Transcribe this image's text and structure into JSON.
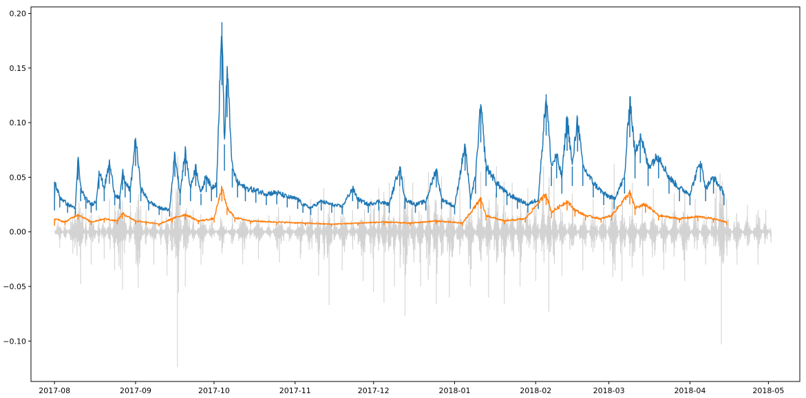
{
  "chart_data": {
    "type": "line",
    "title": "",
    "xlabel": "",
    "ylabel": "",
    "xlim": [
      "2017-07-23",
      "2018-05-13"
    ],
    "ylim": [
      -0.137,
      0.206
    ],
    "grid": false,
    "legend": "none",
    "x_ticks": [
      "2017-08",
      "2017-09",
      "2017-10",
      "2017-11",
      "2017-12",
      "2018-01",
      "2018-02",
      "2018-03",
      "2018-04",
      "2018-05"
    ],
    "y_ticks": [
      -0.1,
      -0.05,
      0.0,
      0.05,
      0.1,
      0.15,
      0.2
    ],
    "y_tick_labels": [
      "−0.10",
      "−0.05",
      "0.00",
      "0.05",
      "0.10",
      "0.15",
      "0.20"
    ],
    "series": [
      {
        "color": "#d3d3d3",
        "style": "returns",
        "points": [
          [
            "2017-08-01",
            0.0
          ],
          [
            "2017-08-03",
            -0.015
          ],
          [
            "2017-08-05",
            0.012
          ],
          [
            "2017-08-08",
            -0.02
          ],
          [
            "2017-08-11",
            -0.048
          ],
          [
            "2017-08-13",
            0.02
          ],
          [
            "2017-08-15",
            -0.03
          ],
          [
            "2017-08-18",
            0.015
          ],
          [
            "2017-08-20",
            -0.025
          ],
          [
            "2017-08-22",
            0.03
          ],
          [
            "2017-08-24",
            -0.035
          ],
          [
            "2017-08-27",
            -0.053
          ],
          [
            "2017-08-30",
            0.025
          ],
          [
            "2017-09-02",
            -0.051
          ],
          [
            "2017-09-05",
            0.02
          ],
          [
            "2017-09-08",
            -0.03
          ],
          [
            "2017-09-11",
            0.022
          ],
          [
            "2017-09-13",
            -0.04
          ],
          [
            "2017-09-15",
            0.04
          ],
          [
            "2017-09-17",
            -0.124
          ],
          [
            "2017-09-18",
            0.03
          ],
          [
            "2017-09-20",
            -0.05
          ],
          [
            "2017-09-23",
            0.02
          ],
          [
            "2017-09-26",
            -0.03
          ],
          [
            "2017-09-30",
            0.015
          ],
          [
            "2017-10-04",
            -0.02
          ],
          [
            "2017-10-08",
            0.015
          ],
          [
            "2017-10-12",
            -0.03
          ],
          [
            "2017-10-15",
            0.01
          ],
          [
            "2017-10-18",
            -0.025
          ],
          [
            "2017-10-22",
            0.015
          ],
          [
            "2017-10-26",
            -0.028
          ],
          [
            "2017-10-30",
            0.015
          ],
          [
            "2017-11-03",
            -0.025
          ],
          [
            "2017-11-07",
            0.03
          ],
          [
            "2017-11-10",
            -0.04
          ],
          [
            "2017-11-12",
            0.04
          ],
          [
            "2017-11-14",
            -0.067
          ],
          [
            "2017-11-16",
            0.025
          ],
          [
            "2017-11-19",
            -0.035
          ],
          [
            "2017-11-23",
            0.02
          ],
          [
            "2017-11-27",
            -0.045
          ],
          [
            "2017-11-30",
            0.03
          ],
          [
            "2017-12-01",
            -0.055
          ],
          [
            "2017-12-03",
            0.04
          ],
          [
            "2017-12-05",
            -0.065
          ],
          [
            "2017-12-07",
            0.045
          ],
          [
            "2017-12-09",
            -0.05
          ],
          [
            "2017-12-11",
            0.05
          ],
          [
            "2017-12-13",
            -0.077
          ],
          [
            "2017-12-16",
            0.045
          ],
          [
            "2017-12-19",
            -0.05
          ],
          [
            "2017-12-22",
            0.055
          ],
          [
            "2017-12-25",
            -0.066
          ],
          [
            "2017-12-27",
            0.05
          ],
          [
            "2017-12-30",
            -0.06
          ],
          [
            "2018-01-03",
            0.04
          ],
          [
            "2018-01-07",
            -0.05
          ],
          [
            "2018-01-11",
            0.055
          ],
          [
            "2018-01-14",
            -0.06
          ],
          [
            "2018-01-17",
            0.06
          ],
          [
            "2018-01-20",
            -0.066
          ],
          [
            "2018-01-23",
            0.045
          ],
          [
            "2018-01-26",
            -0.05
          ],
          [
            "2018-01-29",
            0.04
          ],
          [
            "2018-02-01",
            -0.045
          ],
          [
            "2018-02-04",
            0.06
          ],
          [
            "2018-02-06",
            -0.073
          ],
          [
            "2018-02-08",
            0.05
          ],
          [
            "2018-02-11",
            -0.04
          ],
          [
            "2018-02-15",
            0.035
          ],
          [
            "2018-02-19",
            -0.035
          ],
          [
            "2018-02-23",
            0.03
          ],
          [
            "2018-02-27",
            -0.03
          ],
          [
            "2018-03-03",
            0.062
          ],
          [
            "2018-03-06",
            -0.045
          ],
          [
            "2018-03-10",
            0.045
          ],
          [
            "2018-03-14",
            -0.04
          ],
          [
            "2018-03-18",
            0.04
          ],
          [
            "2018-03-22",
            -0.035
          ],
          [
            "2018-03-26",
            0.035
          ],
          [
            "2018-03-30",
            -0.045
          ],
          [
            "2018-04-03",
            0.03
          ],
          [
            "2018-04-07",
            -0.03
          ],
          [
            "2018-04-11",
            0.04
          ],
          [
            "2018-04-13",
            -0.103
          ],
          [
            "2018-04-15",
            0.03
          ],
          [
            "2018-04-19",
            -0.03
          ],
          [
            "2018-04-23",
            0.025
          ],
          [
            "2018-04-27",
            -0.03
          ],
          [
            "2018-04-30",
            0.02
          ],
          [
            "2018-05-02",
            -0.01
          ]
        ]
      },
      {
        "color": "#1f77b4",
        "style": "line",
        "points": [
          [
            "2017-08-01",
            0.028
          ],
          [
            "2017-08-01",
            0.046
          ],
          [
            "2017-08-03",
            0.032
          ],
          [
            "2017-08-06",
            0.025
          ],
          [
            "2017-08-09",
            0.022
          ],
          [
            "2017-08-10",
            0.068
          ],
          [
            "2017-08-11",
            0.04
          ],
          [
            "2017-08-13",
            0.03
          ],
          [
            "2017-08-15",
            0.025
          ],
          [
            "2017-08-17",
            0.028
          ],
          [
            "2017-08-18",
            0.056
          ],
          [
            "2017-08-20",
            0.04
          ],
          [
            "2017-08-22",
            0.063
          ],
          [
            "2017-08-24",
            0.035
          ],
          [
            "2017-08-26",
            0.03
          ],
          [
            "2017-08-27",
            0.055
          ],
          [
            "2017-08-28",
            0.045
          ],
          [
            "2017-08-30",
            0.038
          ],
          [
            "2017-09-01",
            0.086
          ],
          [
            "2017-09-03",
            0.04
          ],
          [
            "2017-09-06",
            0.028
          ],
          [
            "2017-09-10",
            0.022
          ],
          [
            "2017-09-14",
            0.02
          ],
          [
            "2017-09-16",
            0.072
          ],
          [
            "2017-09-18",
            0.035
          ],
          [
            "2017-09-20",
            0.073
          ],
          [
            "2017-09-22",
            0.04
          ],
          [
            "2017-09-24",
            0.06
          ],
          [
            "2017-09-26",
            0.035
          ],
          [
            "2017-09-28",
            0.052
          ],
          [
            "2017-09-30",
            0.04
          ],
          [
            "2017-10-02",
            0.045
          ],
          [
            "2017-10-04",
            0.192
          ],
          [
            "2017-10-05",
            0.08
          ],
          [
            "2017-10-06",
            0.15
          ],
          [
            "2017-10-08",
            0.058
          ],
          [
            "2017-10-10",
            0.045
          ],
          [
            "2017-10-13",
            0.04
          ],
          [
            "2017-10-17",
            0.038
          ],
          [
            "2017-10-21",
            0.035
          ],
          [
            "2017-10-25",
            0.036
          ],
          [
            "2017-10-29",
            0.032
          ],
          [
            "2017-11-02",
            0.03
          ],
          [
            "2017-11-04",
            0.025
          ],
          [
            "2017-11-07",
            0.022
          ],
          [
            "2017-11-11",
            0.028
          ],
          [
            "2017-11-15",
            0.025
          ],
          [
            "2017-11-19",
            0.023
          ],
          [
            "2017-11-23",
            0.04
          ],
          [
            "2017-11-25",
            0.03
          ],
          [
            "2017-11-29",
            0.025
          ],
          [
            "2017-12-03",
            0.028
          ],
          [
            "2017-12-07",
            0.025
          ],
          [
            "2017-12-11",
            0.06
          ],
          [
            "2017-12-13",
            0.03
          ],
          [
            "2017-12-17",
            0.025
          ],
          [
            "2017-12-21",
            0.028
          ],
          [
            "2017-12-25",
            0.058
          ],
          [
            "2017-12-27",
            0.03
          ],
          [
            "2018-01-01",
            0.023
          ],
          [
            "2018-01-05",
            0.08
          ],
          [
            "2018-01-07",
            0.03
          ],
          [
            "2018-01-09",
            0.05
          ],
          [
            "2018-01-11",
            0.117
          ],
          [
            "2018-01-13",
            0.06
          ],
          [
            "2018-01-17",
            0.045
          ],
          [
            "2018-01-21",
            0.035
          ],
          [
            "2018-01-25",
            0.03
          ],
          [
            "2018-01-29",
            0.025
          ],
          [
            "2018-02-02",
            0.03
          ],
          [
            "2018-02-05",
            0.126
          ],
          [
            "2018-02-07",
            0.06
          ],
          [
            "2018-02-09",
            0.07
          ],
          [
            "2018-02-11",
            0.05
          ],
          [
            "2018-02-13",
            0.106
          ],
          [
            "2018-02-15",
            0.06
          ],
          [
            "2018-02-17",
            0.105
          ],
          [
            "2018-02-19",
            0.06
          ],
          [
            "2018-02-23",
            0.045
          ],
          [
            "2018-02-27",
            0.035
          ],
          [
            "2018-03-03",
            0.03
          ],
          [
            "2018-03-07",
            0.05
          ],
          [
            "2018-03-09",
            0.124
          ],
          [
            "2018-03-11",
            0.07
          ],
          [
            "2018-03-13",
            0.09
          ],
          [
            "2018-03-16",
            0.06
          ],
          [
            "2018-03-20",
            0.07
          ],
          [
            "2018-03-24",
            0.05
          ],
          [
            "2018-03-28",
            0.04
          ],
          [
            "2018-04-01",
            0.035
          ],
          [
            "2018-04-05",
            0.065
          ],
          [
            "2018-04-07",
            0.04
          ],
          [
            "2018-04-10",
            0.05
          ],
          [
            "2018-04-14",
            0.035
          ]
        ]
      },
      {
        "color": "#ff7f0e",
        "style": "line",
        "points": [
          [
            "2017-08-01",
            0.008
          ],
          [
            "2017-08-01",
            0.012
          ],
          [
            "2017-08-05",
            0.009
          ],
          [
            "2017-08-10",
            0.016
          ],
          [
            "2017-08-15",
            0.009
          ],
          [
            "2017-08-20",
            0.012
          ],
          [
            "2017-08-25",
            0.01
          ],
          [
            "2017-08-27",
            0.017
          ],
          [
            "2017-09-01",
            0.01
          ],
          [
            "2017-09-05",
            0.009
          ],
          [
            "2017-09-10",
            0.007
          ],
          [
            "2017-09-15",
            0.012
          ],
          [
            "2017-09-20",
            0.016
          ],
          [
            "2017-09-25",
            0.01
          ],
          [
            "2017-10-01",
            0.012
          ],
          [
            "2017-10-04",
            0.04
          ],
          [
            "2017-10-06",
            0.022
          ],
          [
            "2017-10-09",
            0.013
          ],
          [
            "2017-10-15",
            0.01
          ],
          [
            "2017-10-25",
            0.009
          ],
          [
            "2017-11-05",
            0.008
          ],
          [
            "2017-11-15",
            0.007
          ],
          [
            "2017-11-25",
            0.008
          ],
          [
            "2017-12-05",
            0.009
          ],
          [
            "2017-12-15",
            0.008
          ],
          [
            "2017-12-25",
            0.01
          ],
          [
            "2018-01-04",
            0.008
          ],
          [
            "2018-01-11",
            0.03
          ],
          [
            "2018-01-13",
            0.015
          ],
          [
            "2018-01-20",
            0.01
          ],
          [
            "2018-01-28",
            0.012
          ],
          [
            "2018-02-05",
            0.035
          ],
          [
            "2018-02-07",
            0.018
          ],
          [
            "2018-02-13",
            0.028
          ],
          [
            "2018-02-16",
            0.02
          ],
          [
            "2018-02-20",
            0.015
          ],
          [
            "2018-02-26",
            0.012
          ],
          [
            "2018-03-02",
            0.015
          ],
          [
            "2018-03-09",
            0.036
          ],
          [
            "2018-03-11",
            0.022
          ],
          [
            "2018-03-15",
            0.025
          ],
          [
            "2018-03-20",
            0.015
          ],
          [
            "2018-03-28",
            0.012
          ],
          [
            "2018-04-04",
            0.014
          ],
          [
            "2018-04-10",
            0.012
          ],
          [
            "2018-04-15",
            0.009
          ]
        ]
      }
    ]
  }
}
